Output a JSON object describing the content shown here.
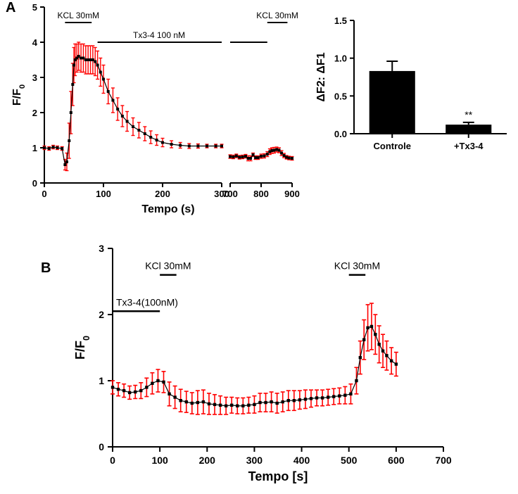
{
  "panelA": {
    "letter": "A",
    "left_trace": {
      "type": "scatter_errorbar",
      "xlabel": "Tempo (s)",
      "ylabel": "F/F0",
      "label_fontsize": 16,
      "tick_fontsize": 13,
      "xlim": [
        0,
        300
      ],
      "ylim": [
        0,
        5
      ],
      "xticks": [
        0,
        100,
        200,
        300
      ],
      "yticks": [
        0,
        1,
        2,
        3,
        4,
        5
      ],
      "line_color": "#000000",
      "marker_color": "#000000",
      "errorbar_color": "#ff0000",
      "marker_size": 4,
      "background_color": "#ffffff",
      "x": [
        0,
        8,
        15,
        22,
        30,
        35,
        38,
        42,
        45,
        48,
        50,
        52,
        55,
        58,
        62,
        66,
        70,
        74,
        78,
        82,
        86,
        90,
        95,
        100,
        108,
        116,
        124,
        132,
        140,
        150,
        160,
        170,
        180,
        190,
        200,
        215,
        230,
        245,
        260,
        275,
        290,
        300
      ],
      "y": [
        1.0,
        0.98,
        1.02,
        1.0,
        0.98,
        0.52,
        0.6,
        1.2,
        2.0,
        2.8,
        3.35,
        3.5,
        3.55,
        3.6,
        3.55,
        3.55,
        3.5,
        3.5,
        3.5,
        3.5,
        3.45,
        3.35,
        3.15,
        2.95,
        2.6,
        2.35,
        2.1,
        1.9,
        1.75,
        1.6,
        1.5,
        1.4,
        1.3,
        1.22,
        1.15,
        1.1,
        1.07,
        1.05,
        1.05,
        1.05,
        1.05,
        1.05
      ],
      "err": [
        0.05,
        0.05,
        0.05,
        0.05,
        0.05,
        0.15,
        0.25,
        0.5,
        0.6,
        0.6,
        0.5,
        0.45,
        0.4,
        0.4,
        0.4,
        0.4,
        0.4,
        0.4,
        0.4,
        0.4,
        0.4,
        0.4,
        0.4,
        0.4,
        0.35,
        0.35,
        0.32,
        0.3,
        0.28,
        0.25,
        0.22,
        0.2,
        0.18,
        0.15,
        0.12,
        0.1,
        0.08,
        0.07,
        0.06,
        0.05,
        0.05,
        0.05
      ],
      "annotations": {
        "kcl1_label": "KCL 30mM",
        "kcl1_bar": [
          35,
          80
        ],
        "tx_label": "Tx3-4 100 nM",
        "tx_bar": [
          90,
          820
        ]
      }
    },
    "right_trace": {
      "xlim": [
        700,
        900
      ],
      "xticks": [
        700,
        800,
        900
      ],
      "line_color": "#000000",
      "marker_color": "#000000",
      "errorbar_color": "#ff0000",
      "x": [
        700,
        710,
        720,
        730,
        740,
        750,
        758,
        766,
        774,
        782,
        790,
        800,
        810,
        820,
        828,
        835,
        842,
        850,
        858,
        866,
        874,
        882,
        890,
        900
      ],
      "y": [
        0.75,
        0.74,
        0.77,
        0.73,
        0.74,
        0.76,
        0.7,
        0.7,
        0.8,
        0.72,
        0.72,
        0.76,
        0.77,
        0.82,
        0.89,
        0.92,
        0.93,
        0.95,
        0.93,
        0.85,
        0.78,
        0.73,
        0.71,
        0.7
      ],
      "err": [
        0.05,
        0.05,
        0.05,
        0.05,
        0.05,
        0.05,
        0.07,
        0.07,
        0.05,
        0.05,
        0.05,
        0.06,
        0.06,
        0.07,
        0.08,
        0.08,
        0.08,
        0.07,
        0.07,
        0.07,
        0.06,
        0.05,
        0.05,
        0.05
      ],
      "annotations": {
        "kcl2_label": "KCL 30mM",
        "kcl2_bar": [
          820,
          885
        ]
      }
    },
    "barChart": {
      "type": "bar",
      "ylabel": "ΔF2: ΔF1",
      "label_fontsize": 16,
      "tick_fontsize": 13,
      "ylim": [
        0.0,
        1.5
      ],
      "yticks": [
        0.0,
        0.5,
        1.0,
        1.5
      ],
      "categories": [
        "Controle",
        "+Tx3-4"
      ],
      "values": [
        0.83,
        0.12
      ],
      "errors": [
        0.13,
        0.03
      ],
      "bar_color": "#000000",
      "errorbar_color": "#000000",
      "significance_label": "**",
      "bar_width": 0.6,
      "background_color": "#ffffff"
    }
  },
  "panelB": {
    "letter": "B",
    "trace": {
      "type": "scatter_errorbar",
      "xlabel": "Tempo [s]",
      "ylabel": "F/F0",
      "label_fontsize": 18,
      "tick_fontsize": 14,
      "xlim": [
        0,
        700
      ],
      "ylim": [
        0,
        3
      ],
      "xticks": [
        0,
        100,
        200,
        300,
        400,
        500,
        600,
        700
      ],
      "yticks": [
        0,
        1,
        2,
        3
      ],
      "line_color": "#000000",
      "marker_color": "#000000",
      "errorbar_color": "#ff0000",
      "marker_size": 4,
      "background_color": "#ffffff",
      "x": [
        0,
        12,
        24,
        36,
        48,
        60,
        72,
        84,
        96,
        108,
        120,
        132,
        144,
        156,
        168,
        180,
        192,
        204,
        216,
        228,
        240,
        252,
        264,
        276,
        288,
        300,
        312,
        324,
        336,
        348,
        360,
        372,
        384,
        396,
        408,
        420,
        432,
        444,
        456,
        468,
        480,
        492,
        504,
        516,
        524,
        532,
        540,
        548,
        556,
        564,
        572,
        580,
        590,
        600
      ],
      "y": [
        0.9,
        0.87,
        0.85,
        0.82,
        0.83,
        0.85,
        0.9,
        0.96,
        1.0,
        0.98,
        0.8,
        0.75,
        0.7,
        0.68,
        0.66,
        0.67,
        0.68,
        0.65,
        0.64,
        0.63,
        0.62,
        0.63,
        0.62,
        0.62,
        0.63,
        0.64,
        0.67,
        0.67,
        0.68,
        0.66,
        0.68,
        0.7,
        0.7,
        0.71,
        0.72,
        0.73,
        0.74,
        0.74,
        0.75,
        0.76,
        0.77,
        0.78,
        0.8,
        1.0,
        1.35,
        1.62,
        1.8,
        1.82,
        1.7,
        1.55,
        1.45,
        1.38,
        1.3,
        1.25
      ],
      "err": [
        0.1,
        0.1,
        0.1,
        0.1,
        0.1,
        0.12,
        0.14,
        0.16,
        0.17,
        0.16,
        0.18,
        0.17,
        0.17,
        0.16,
        0.16,
        0.18,
        0.18,
        0.16,
        0.15,
        0.14,
        0.13,
        0.12,
        0.12,
        0.12,
        0.12,
        0.13,
        0.14,
        0.14,
        0.15,
        0.15,
        0.15,
        0.15,
        0.15,
        0.14,
        0.14,
        0.13,
        0.12,
        0.12,
        0.12,
        0.12,
        0.12,
        0.13,
        0.15,
        0.2,
        0.25,
        0.3,
        0.35,
        0.35,
        0.3,
        0.28,
        0.25,
        0.22,
        0.2,
        0.18
      ],
      "annotations": {
        "tx_label": "Tx3-4(100nM)",
        "tx_bar": [
          0,
          100
        ],
        "kcl1_label": "KCl 30mM",
        "kcl1_bar": [
          100,
          135
        ],
        "kcl2_label": "KCl 30mM",
        "kcl2_bar": [
          500,
          535
        ]
      }
    }
  }
}
